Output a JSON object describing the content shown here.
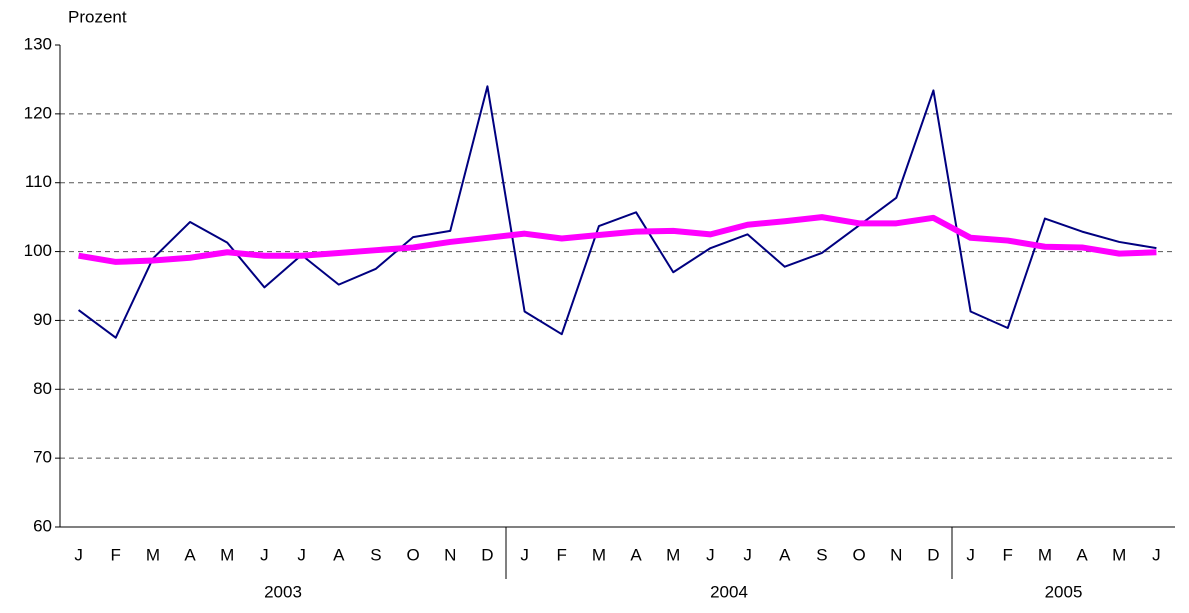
{
  "chart_data": {
    "type": "line",
    "y_label": "Prozent",
    "categories": [
      "J",
      "F",
      "M",
      "A",
      "M",
      "J",
      "J",
      "A",
      "S",
      "O",
      "N",
      "D",
      "J",
      "F",
      "M",
      "A",
      "M",
      "J",
      "J",
      "A",
      "S",
      "O",
      "N",
      "D",
      "J",
      "F",
      "M",
      "A",
      "M",
      "J"
    ],
    "groups": [
      {
        "label": "2003",
        "count": 12
      },
      {
        "label": "2004",
        "count": 12
      },
      {
        "label": "2005",
        "count": 6
      }
    ],
    "series": [
      {
        "color": "#000080",
        "width": 2,
        "values": [
          91.5,
          87.5,
          99,
          104.3,
          101.3,
          94.8,
          99.5,
          95.2,
          97.5,
          102.1,
          103,
          124,
          91.3,
          88,
          103.7,
          105.7,
          97,
          100.5,
          102.5,
          97.8,
          99.8,
          103.8,
          107.8,
          123.4,
          91.3,
          88.9,
          104.8,
          102.9,
          101.4,
          100.5
        ]
      },
      {
        "color": "#ff00ff",
        "width": 6,
        "values": [
          99.4,
          98.5,
          98.7,
          99.1,
          99.9,
          99.4,
          99.4,
          99.8,
          100.2,
          100.6,
          101.4,
          102,
          102.6,
          101.9,
          102.4,
          102.9,
          103,
          102.5,
          103.9,
          104.4,
          105,
          104.1,
          104.1,
          104.9,
          102,
          101.6,
          100.7,
          100.6,
          99.7,
          99.9
        ]
      }
    ],
    "ylim": [
      60,
      130
    ],
    "yticks": [
      60,
      70,
      80,
      90,
      100,
      110,
      120,
      130
    ],
    "grid": true
  }
}
